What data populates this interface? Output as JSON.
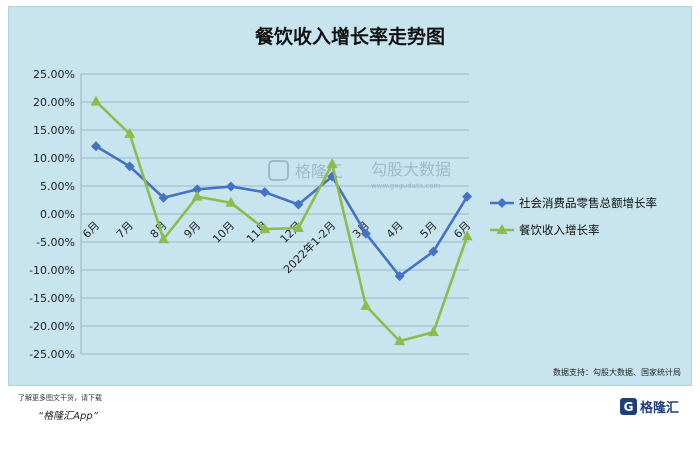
{
  "chart_data": {
    "type": "line",
    "title": "餐饮收入增长率走势图",
    "categories": [
      "6月",
      "7月",
      "8月",
      "9月",
      "10月",
      "11月",
      "12月",
      "2022年1-2月",
      "3月",
      "4月",
      "5月",
      "6月"
    ],
    "series": [
      {
        "name": "社会消费品零售总额增长率",
        "values": [
          12.1,
          8.5,
          2.9,
          4.4,
          4.9,
          3.9,
          1.7,
          6.7,
          -3.5,
          -11.1,
          -6.7,
          3.1
        ],
        "color": "#4472c4",
        "marker": "diamond"
      },
      {
        "name": "餐饮收入增长率",
        "values": [
          20.1,
          14.3,
          -4.5,
          3.1,
          2.0,
          -2.7,
          -2.5,
          8.9,
          -16.4,
          -22.7,
          -21.1,
          -4.0
        ],
        "color": "#8dbb4c",
        "marker": "triangle"
      }
    ],
    "ylim": [
      -25,
      25
    ],
    "yticks": [
      "25.00%",
      "20.00%",
      "15.00%",
      "10.00%",
      "5.00%",
      "0.00%",
      "-5.00%",
      "-10.00%",
      "-15.00%",
      "-20.00%",
      "-25.00%"
    ],
    "grid": true,
    "legend": "right",
    "source": "数据支持：勾股大数据、国家统计局"
  },
  "watermark": {
    "brand": "格隆汇",
    "partner": "勾股大数据",
    "site": "www.gogudata.com"
  },
  "footer": {
    "note": "了解更多图文干货，请下载",
    "app": "“格隆汇App”",
    "brand": "格隆汇"
  }
}
